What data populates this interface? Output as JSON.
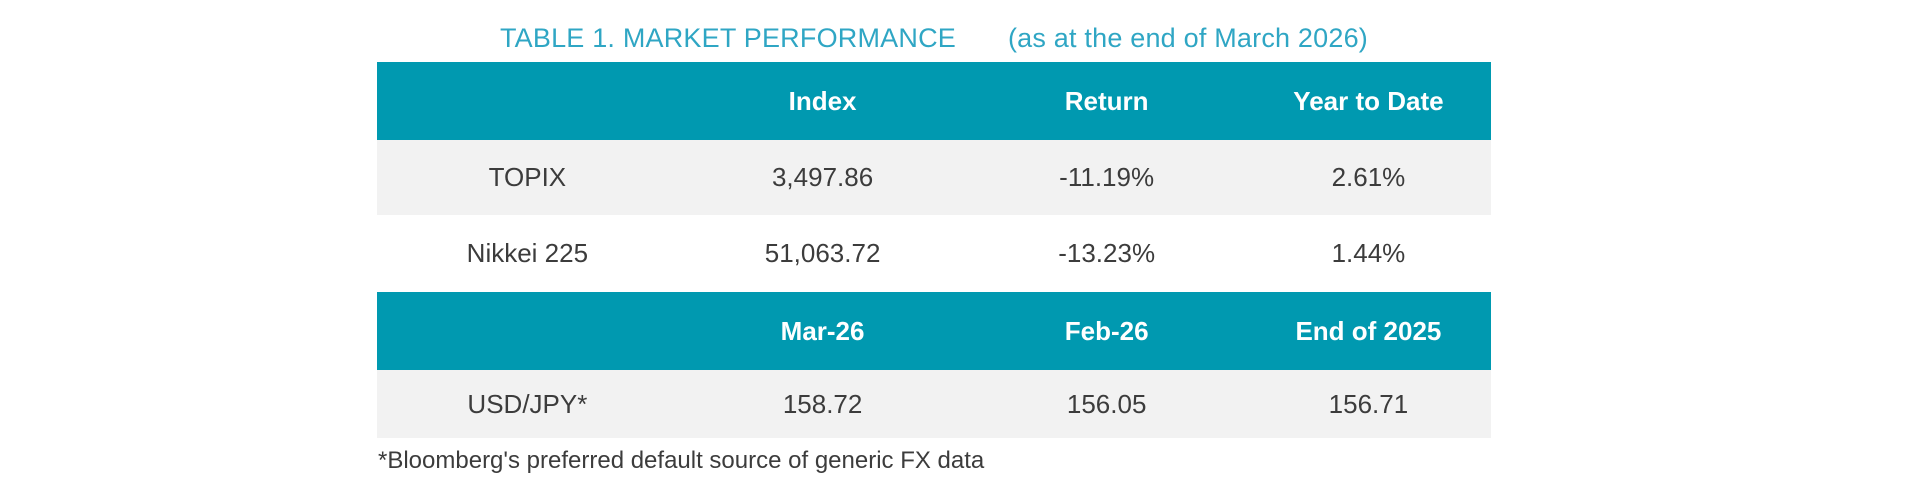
{
  "title": {
    "main": "TABLE 1. MARKET PERFORMANCE",
    "suffix": "(as at the end of March 2026)"
  },
  "colors": {
    "header_bg": "#0099b0",
    "header_text": "#ffffff",
    "row_alt_bg": "#f2f2f2",
    "row_bg": "#ffffff",
    "body_text": "#3c3c3c",
    "title_color": "#2fa6c4"
  },
  "market_table": {
    "header1": {
      "col0": "",
      "col1": "Index",
      "col2": "Return",
      "col3": "Year to Date"
    },
    "rows_section1": [
      {
        "label": "TOPIX",
        "index": "3,497.86",
        "return": "-11.19%",
        "ytd": "2.61%"
      },
      {
        "label": "Nikkei 225",
        "index": "51,063.72",
        "return": "-13.23%",
        "ytd": "1.44%"
      }
    ],
    "header2": {
      "col0": "",
      "col1": "Mar-26",
      "col2": "Feb-26",
      "col3": "End of 2025"
    },
    "rows_section2": [
      {
        "label": "USD/JPY*",
        "mar26": "158.72",
        "feb26": "156.05",
        "end_of_2025": "156.71"
      }
    ]
  },
  "footnote": "*Bloomberg's preferred default source of generic FX data"
}
